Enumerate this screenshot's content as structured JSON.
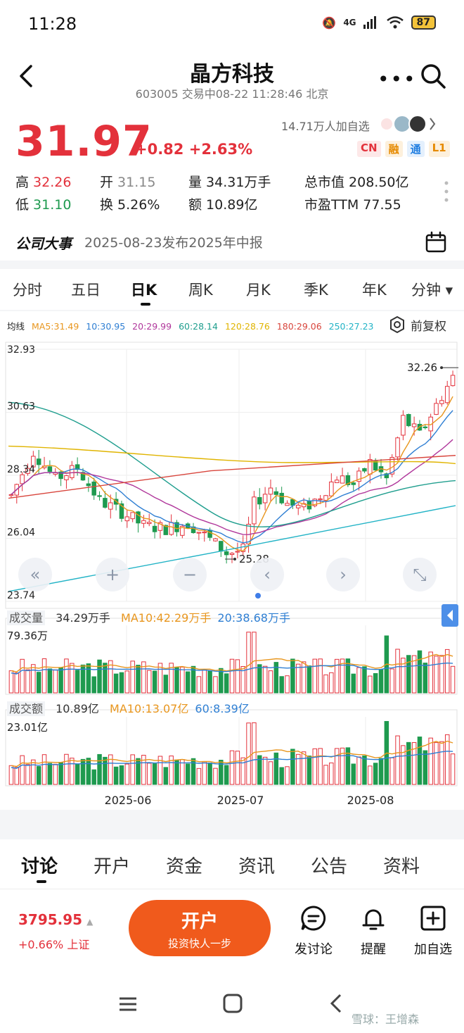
{
  "status_bar": {
    "time": "11:28",
    "network": "4G",
    "battery": "87"
  },
  "header": {
    "stock_name": "晶方科技",
    "subtitle": "603005 交易中08-22 11:28:46 北京",
    "more": "•••"
  },
  "quote": {
    "price": "31.97",
    "change": "+0.82 +2.63%",
    "watchers": "14.71万人加自选",
    "badges": [
      {
        "text": "CN",
        "color": "#e3313b",
        "bg": "#fde8e8"
      },
      {
        "text": "融",
        "color": "#e68a00",
        "bg": "#fdf0dc"
      },
      {
        "text": "通",
        "color": "#1f7de0",
        "bg": "#e4f0fd"
      },
      {
        "text": "L1",
        "color": "#e68a00",
        "bg": "#fdf0dc"
      }
    ]
  },
  "stats": {
    "high_label": "高",
    "high": "32.26",
    "open_label": "开",
    "open": "31.15",
    "volume_label": "量",
    "volume": "34.31万手",
    "mcap_label": "总市值",
    "mcap": "208.50亿",
    "low_label": "低",
    "low": "31.10",
    "turnover_label": "换",
    "turnover": "5.26%",
    "amount_label": "额",
    "amount": "10.89亿",
    "pe_label": "市盈TTM",
    "pe": "77.55"
  },
  "events": {
    "title": "公司大事",
    "text": "2025-08-23发布2025年中报"
  },
  "period_tabs": [
    "分时",
    "五日",
    "日K",
    "周K",
    "月K",
    "季K",
    "年K",
    "分钟 ▾"
  ],
  "ma_row": {
    "label": "均线",
    "items": [
      {
        "text": "MA5:31.49",
        "color": "#e8961e"
      },
      {
        "text": "10:30.95",
        "color": "#2f7fd3"
      },
      {
        "text": "20:29.99",
        "color": "#b0379b"
      },
      {
        "text": "60:28.14",
        "color": "#1f9e8e"
      },
      {
        "text": "120:28.76",
        "color": "#e0b400"
      },
      {
        "text": "180:29.06",
        "color": "#d8453c"
      },
      {
        "text": "250:27.23",
        "color": "#22b3c6"
      }
    ],
    "adjust": "前复权"
  },
  "chart_data": {
    "type": "candlestick",
    "y_ticks": [
      "32.93",
      "30.63",
      "28.34",
      "26.04",
      "23.74"
    ],
    "ylim": [
      23.74,
      32.93
    ],
    "high_marker": "32.26",
    "low_marker": "25.28",
    "x_ticks": [
      "2025-06",
      "2025-07",
      "2025-08"
    ],
    "volume": {
      "title": "成交量",
      "current": "34.29万手",
      "ma10": "MA10:42.29万手",
      "ma20": "20:38.68万手",
      "max_label": "79.36万"
    },
    "amount": {
      "title": "成交额",
      "current": "10.89亿",
      "ma10": "MA10:13.07亿",
      "ma60": "60:8.39亿",
      "max_label": "23.01亿"
    }
  },
  "bottom_tabs": [
    "讨论",
    "开户",
    "资金",
    "资讯",
    "公告",
    "资料"
  ],
  "action_bar": {
    "index_price": "3795.95",
    "index_change": "+0.66% 上证",
    "open_account": "开户",
    "open_account_sub": "投资快人一步",
    "discuss": "发讨论",
    "remind": "提醒",
    "add_watch": "加自选"
  },
  "watermark": "雪球：王增森"
}
